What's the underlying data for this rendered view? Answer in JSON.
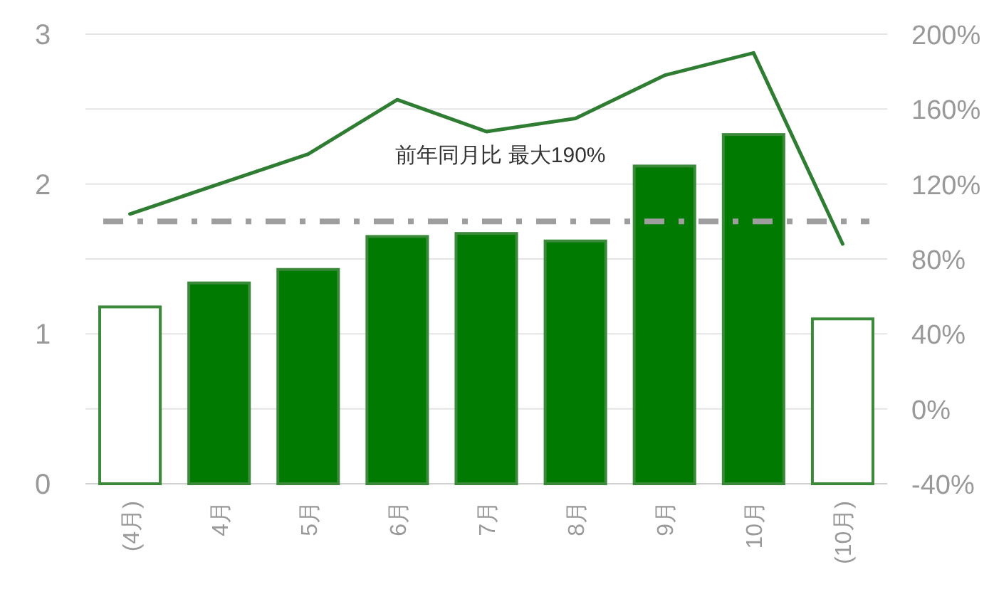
{
  "chart_data": {
    "type": "bar",
    "categories": [
      "(4月)",
      "4月",
      "5月",
      "6月",
      "7月",
      "8月",
      "9月",
      "10月",
      "(10月)"
    ],
    "series": [
      {
        "colors": [
          "#ffffff",
          "#007a00",
          "#007a00",
          "#007a00",
          "#007a00",
          "#007a00",
          "#007a00",
          "#007a00",
          "#ffffff"
        ],
        "color": "#3a8a3a",
        "values": [
          1.18,
          1.34,
          1.43,
          1.65,
          1.67,
          1.62,
          2.12,
          2.33,
          1.1
        ]
      },
      {
        "type": "line",
        "axis": "y2",
        "color": "#2e7d32",
        "values": [
          104,
          120,
          136,
          165,
          148,
          155,
          178,
          190,
          88
        ]
      }
    ],
    "ylim": [
      0,
      3
    ],
    "yticks": [
      0,
      1,
      2,
      3
    ],
    "y2lim": [
      -40,
      200
    ],
    "y2ticks": [
      {
        "value": -40,
        "label": "-40%"
      },
      {
        "value": 0,
        "label": "0%"
      },
      {
        "value": 40,
        "label": "40%"
      },
      {
        "value": 80,
        "label": "80%"
      },
      {
        "value": 120,
        "label": "120%"
      },
      {
        "value": 160,
        "label": "160%"
      },
      {
        "value": 200,
        "label": "200%"
      }
    ],
    "ref_lines": [
      {
        "axis": "y2",
        "value": 100,
        "color": "#9e9e9e",
        "line_style": "dashed"
      }
    ],
    "grid": true,
    "annotations": [
      "前年同月比 最大190%"
    ]
  }
}
